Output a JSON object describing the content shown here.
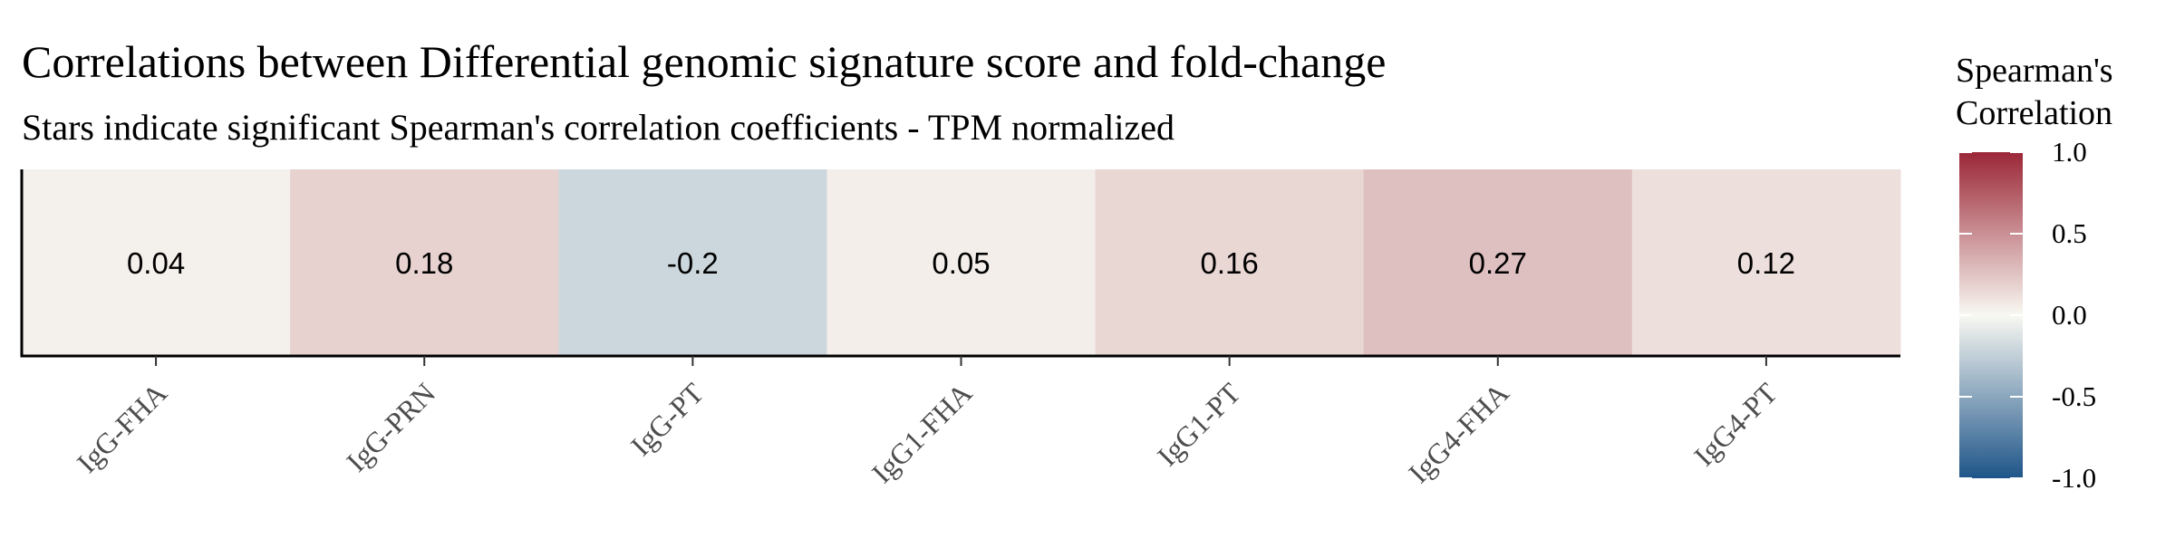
{
  "chart_data": {
    "type": "heatmap",
    "title": "Correlations between Differential genomic signature score and fold-change",
    "subtitle": "Stars indicate significant Spearman's correlation coefficients - TPM normalized",
    "categories": [
      "IgG-FHA",
      "IgG-PRN",
      "IgG-PT",
      "IgG1-FHA",
      "IgG1-PT",
      "IgG4-FHA",
      "IgG4-PT"
    ],
    "values": [
      0.04,
      0.18,
      -0.2,
      0.05,
      0.16,
      0.27,
      0.12
    ],
    "value_labels": [
      "0.04",
      "0.18",
      "-0.2",
      "0.05",
      "0.16",
      "0.27",
      "0.12"
    ],
    "xlabel": "",
    "ylabel": "",
    "legend": {
      "title_lines": [
        "Spearman's",
        "Correlation"
      ],
      "position": "right",
      "range": [
        -1,
        1
      ],
      "ticks": [
        1,
        0.5,
        0,
        -0.5,
        -1
      ],
      "tick_labels": [
        "1.0",
        "0.5",
        "0.0",
        "-0.5",
        "-1.0"
      ],
      "colors": {
        "low": "#1e5589",
        "mid": "#f8f8f2",
        "high": "#9b2737"
      }
    }
  }
}
